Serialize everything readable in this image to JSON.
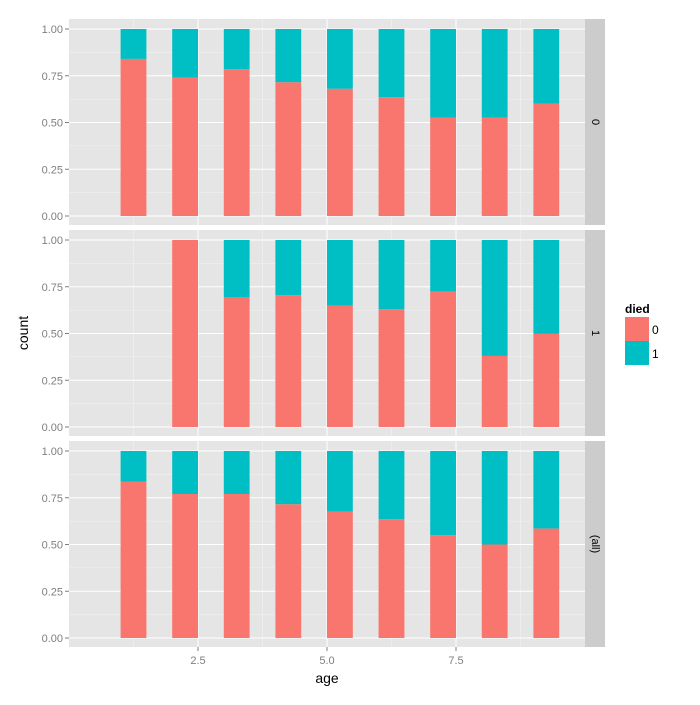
{
  "chart_data": {
    "type": "bar",
    "stacked": "fill",
    "xlabel": "age",
    "ylabel": "count",
    "xlim": [
      0,
      10
    ],
    "ylim": [
      0,
      1
    ],
    "x_ticks": [
      "2.5",
      "5.0",
      "7.5"
    ],
    "x_tick_values": [
      2.5,
      5.0,
      7.5
    ],
    "y_ticks": [
      "0.00",
      "0.25",
      "0.50",
      "0.75",
      "1.00"
    ],
    "grid": true,
    "legend": {
      "title": "died",
      "position": "right",
      "entries": [
        "0",
        "1"
      ]
    },
    "colors": {
      "0": "#F8766D",
      "1": "#00BFC4",
      "panel": "#E5E5E5",
      "strip": "#CCCCCC"
    },
    "x": [
      1.25,
      2.25,
      3.25,
      4.25,
      5.25,
      6.25,
      7.25,
      8.25,
      9.25
    ],
    "facets": [
      {
        "label": "0",
        "died_0_share": [
          0.84,
          0.74,
          0.785,
          0.715,
          0.68,
          0.635,
          0.525,
          0.525,
          0.6
        ]
      },
      {
        "label": "1",
        "died_0_share": [
          null,
          1.0,
          0.695,
          0.705,
          0.65,
          0.63,
          0.725,
          0.38,
          0.5
        ]
      },
      {
        "label": "(all)",
        "died_0_share": [
          0.835,
          0.77,
          0.77,
          0.715,
          0.675,
          0.635,
          0.55,
          0.5,
          0.585
        ]
      }
    ]
  }
}
